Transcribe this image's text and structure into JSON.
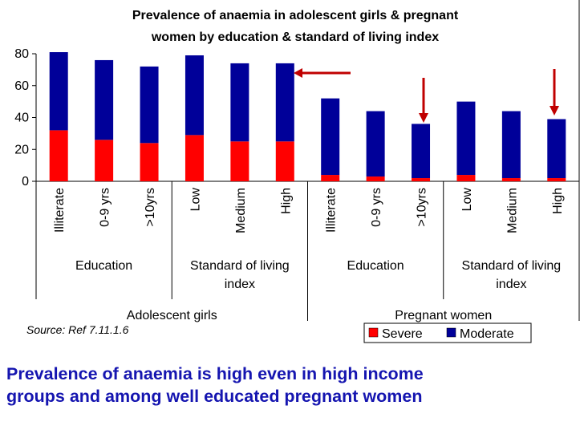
{
  "chart_data": {
    "type": "bar",
    "stacked": true,
    "title_lines": [
      "Prevalence of anaemia in adolescent girls & pregnant",
      "women by education & standard of living index"
    ],
    "categories": [
      "Illiterate",
      "0-9 yrs",
      ">10yrs",
      "Low",
      "Medium",
      "High",
      "Illiterate",
      "0-9 yrs",
      ">10yrs",
      "Low",
      "Medium",
      "High"
    ],
    "groups": [
      {
        "label_lines": [
          "Education"
        ],
        "span": [
          0,
          2
        ]
      },
      {
        "label_lines": [
          "Standard of living",
          "index"
        ],
        "span": [
          3,
          5
        ]
      },
      {
        "label_lines": [
          "Education"
        ],
        "span": [
          6,
          8
        ]
      },
      {
        "label_lines": [
          "Standard of living",
          "index"
        ],
        "span": [
          9,
          11
        ]
      }
    ],
    "supergroups": [
      {
        "label": "Adolescent girls",
        "span": [
          0,
          5
        ]
      },
      {
        "label": "Pregnant women",
        "span": [
          6,
          11
        ]
      }
    ],
    "series": [
      {
        "name": "Severe",
        "color": "#ff0000",
        "values": [
          32,
          26,
          24,
          29,
          25,
          25,
          4,
          3,
          2,
          4,
          2,
          2
        ]
      },
      {
        "name": "Moderate",
        "color": "#000099",
        "values": [
          49,
          50,
          48,
          50,
          49,
          49,
          48,
          41,
          34,
          46,
          42,
          37
        ]
      }
    ],
    "ylim": [
      0,
      80
    ],
    "yticks": [
      0,
      20,
      40,
      60,
      80
    ],
    "legend_position": "bottom-right",
    "annotations": [
      "red arrows pointing to High (standard of living) and >10yrs (education) bars"
    ]
  },
  "source_note": "Source: Ref 7.11.1.6",
  "caption_lines": [
    "Prevalence of anaemia is  high even in high income",
    "groups and among well educated  pregnant women"
  ],
  "colors": {
    "arrow": "#c00000",
    "caption": "#1515b0",
    "axis": "#000000"
  }
}
